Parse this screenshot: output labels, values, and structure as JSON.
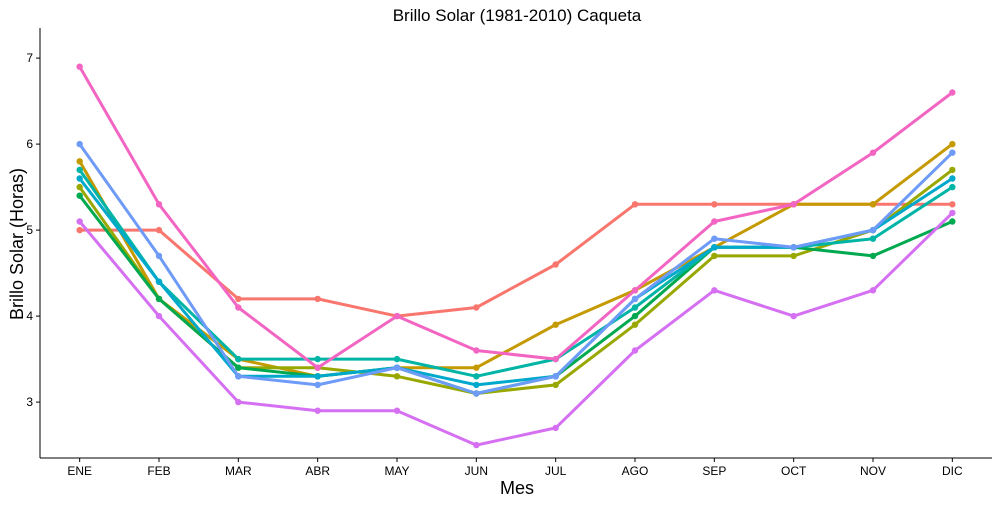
{
  "chart_data": {
    "type": "line",
    "title": "Brillo Solar (1981-2010)  Caqueta",
    "xlabel": "Mes",
    "ylabel": "Brillo Solar (Horas)",
    "categories": [
      "ENE",
      "FEB",
      "MAR",
      "ABR",
      "MAY",
      "JUN",
      "JUL",
      "AGO",
      "SEP",
      "OCT",
      "NOV",
      "DIC"
    ],
    "ylim": [
      2.35,
      7.35
    ],
    "yticks": [
      3,
      4,
      5,
      6,
      7
    ],
    "grid": false,
    "legend": "none",
    "series": [
      {
        "color": "#F8766D",
        "values": [
          5.0,
          5.0,
          4.2,
          4.2,
          4.0,
          4.1,
          4.6,
          5.3,
          5.3,
          5.3,
          5.3,
          5.3
        ]
      },
      {
        "color": "#C49A00",
        "values": [
          5.8,
          4.2,
          3.5,
          3.3,
          3.4,
          3.4,
          3.9,
          4.3,
          4.8,
          5.3,
          5.3,
          6.0
        ]
      },
      {
        "color": "#99A800",
        "values": [
          5.5,
          4.2,
          3.4,
          3.4,
          3.3,
          3.1,
          3.2,
          3.9,
          4.7,
          4.7,
          5.0,
          5.7
        ]
      },
      {
        "color": "#00A94F",
        "values": [
          5.4,
          4.2,
          3.4,
          3.3,
          3.4,
          3.1,
          3.3,
          4.0,
          4.8,
          4.8,
          4.7,
          5.1
        ]
      },
      {
        "color": "#00B4A6",
        "values": [
          5.7,
          4.4,
          3.5,
          3.5,
          3.5,
          3.3,
          3.5,
          4.1,
          4.8,
          4.8,
          4.9,
          5.5
        ]
      },
      {
        "color": "#00A9CC",
        "values": [
          5.6,
          4.4,
          3.3,
          3.3,
          3.4,
          3.2,
          3.3,
          4.2,
          4.8,
          4.8,
          5.0,
          5.6
        ]
      },
      {
        "color": "#6E9AF8",
        "values": [
          6.0,
          4.7,
          3.3,
          3.2,
          3.4,
          3.1,
          3.3,
          4.2,
          4.9,
          4.8,
          5.0,
          5.9
        ]
      },
      {
        "color": "#D670F2",
        "values": [
          5.1,
          4.0,
          3.0,
          2.9,
          2.9,
          2.5,
          2.7,
          3.6,
          4.3,
          4.0,
          4.3,
          5.2
        ]
      },
      {
        "color": "#F365C2",
        "values": [
          6.9,
          5.3,
          4.1,
          3.4,
          4.0,
          3.6,
          3.5,
          4.3,
          5.1,
          5.3,
          5.9,
          6.6
        ]
      }
    ]
  }
}
